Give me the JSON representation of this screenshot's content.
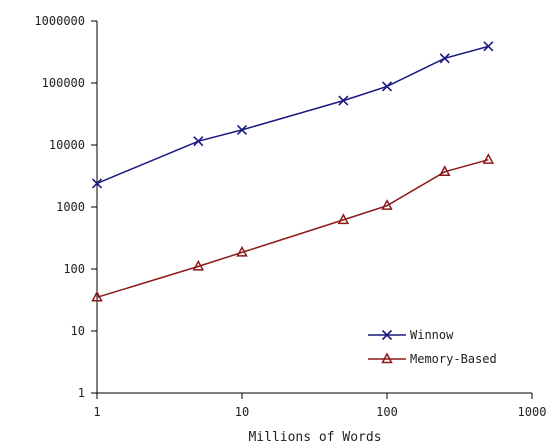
{
  "chart_data": {
    "type": "line",
    "title": "",
    "xlabel": "Millions of Words",
    "ylabel": "",
    "xscale": "log",
    "yscale": "log",
    "xlim": [
      1,
      1000
    ],
    "ylim": [
      1,
      1000000
    ],
    "x_ticks": [
      1,
      10,
      100,
      1000
    ],
    "x_tick_labels": [
      "1",
      "10",
      "100",
      "1000"
    ],
    "y_ticks": [
      1,
      10,
      100,
      1000,
      10000,
      100000,
      1000000
    ],
    "y_tick_labels": [
      "1",
      "10",
      "100",
      "1000",
      "10000",
      "100000",
      "1000000"
    ],
    "grid": false,
    "legend_position": "bottom-right",
    "series": [
      {
        "name": "Winnow",
        "marker": "x",
        "color": "#1a1a80",
        "x": [
          1,
          5,
          10,
          50,
          100,
          250,
          500
        ],
        "y": [
          2400,
          11500,
          17500,
          52000,
          88000,
          250000,
          390000
        ]
      },
      {
        "name": "Memory-Based",
        "marker": "triangle",
        "color": "#8b1a1a",
        "x": [
          1,
          5,
          10,
          50,
          100,
          250,
          500
        ],
        "y": [
          35,
          110,
          185,
          620,
          1050,
          3700,
          5800
        ]
      }
    ]
  }
}
